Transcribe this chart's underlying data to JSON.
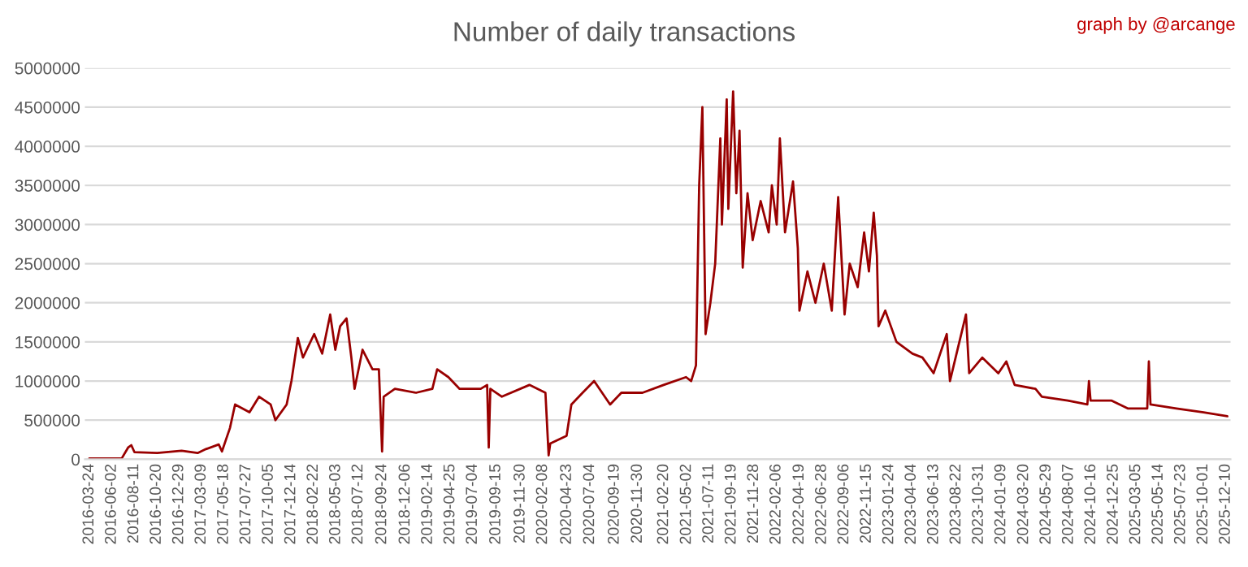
{
  "chart_data": {
    "type": "line",
    "title": "Number of daily transactions",
    "annotations": [
      "graph by @arcange"
    ],
    "x": [
      "2016-03-24",
      "2016-07-03",
      "2016-07-23",
      "2016-08-02",
      "2016-08-12",
      "2016-10-22",
      "2017-01-06",
      "2017-02-25",
      "2017-03-23",
      "2017-05-02",
      "2017-05-12",
      "2017-06-06",
      "2017-06-22",
      "2017-08-06",
      "2017-09-05",
      "2017-10-11",
      "2017-10-26",
      "2017-11-30",
      "2017-12-15",
      "2018-01-04",
      "2018-01-20",
      "2018-02-24",
      "2018-03-21",
      "2018-04-15",
      "2018-05-01",
      "2018-05-16",
      "2018-06-05",
      "2018-06-20",
      "2018-06-30",
      "2018-07-25",
      "2018-08-25",
      "2018-09-14",
      "2018-09-24",
      "2018-09-29",
      "2018-11-03",
      "2019-01-08",
      "2019-02-28",
      "2019-03-15",
      "2019-04-19",
      "2019-05-24",
      "2019-07-29",
      "2019-08-18",
      "2019-08-23",
      "2019-08-28",
      "2019-10-03",
      "2019-12-28",
      "2020-02-16",
      "2020-02-26",
      "2020-03-02",
      "2020-04-22",
      "2020-05-07",
      "2020-06-11",
      "2020-07-17",
      "2020-09-05",
      "2020-10-10",
      "2020-12-15",
      "2021-02-19",
      "2021-04-30",
      "2021-05-16",
      "2021-05-31",
      "2021-06-10",
      "2021-06-20",
      "2021-06-30",
      "2021-07-15",
      "2021-07-30",
      "2021-08-15",
      "2021-08-20",
      "2021-09-04",
      "2021-09-09",
      "2021-09-24",
      "2021-10-04",
      "2021-10-14",
      "2021-10-24",
      "2021-11-08",
      "2021-11-24",
      "2021-12-19",
      "2022-01-13",
      "2022-01-23",
      "2022-02-07",
      "2022-02-17",
      "2022-03-05",
      "2022-03-30",
      "2022-04-14",
      "2022-04-19",
      "2022-05-14",
      "2022-06-08",
      "2022-07-04",
      "2022-07-29",
      "2022-08-18",
      "2022-09-07",
      "2022-09-23",
      "2022-10-18",
      "2022-11-07",
      "2022-11-22",
      "2022-12-07",
      "2022-12-17",
      "2022-12-22",
      "2023-01-12",
      "2023-02-16",
      "2023-04-07",
      "2023-05-08",
      "2023-06-12",
      "2023-07-23",
      "2023-08-02",
      "2023-09-21",
      "2023-10-01",
      "2023-11-11",
      "2023-12-31",
      "2024-01-25",
      "2024-02-20",
      "2024-04-25",
      "2024-05-15",
      "2024-08-04",
      "2024-10-04",
      "2024-10-09",
      "2024-10-14",
      "2024-12-19",
      "2025-02-07",
      "2025-04-09",
      "2025-04-14",
      "2025-04-19",
      "2025-07-09",
      "2025-10-02",
      "2025-12-15"
    ],
    "series": [
      {
        "color": "#990000",
        "values": [
          10000,
          10000,
          150000,
          180000,
          90000,
          80000,
          110000,
          80000,
          130000,
          190000,
          100000,
          400000,
          700000,
          600000,
          800000,
          700000,
          500000,
          700000,
          1000000,
          1550000,
          1300000,
          1600000,
          1350000,
          1850000,
          1400000,
          1700000,
          1800000,
          1300000,
          900000,
          1400000,
          1150000,
          1150000,
          100000,
          800000,
          900000,
          850000,
          900000,
          1150000,
          1050000,
          900000,
          900000,
          950000,
          150000,
          900000,
          800000,
          950000,
          850000,
          50000,
          200000,
          300000,
          700000,
          850000,
          1000000,
          700000,
          850000,
          850000,
          950000,
          1050000,
          1000000,
          1200000,
          3500000,
          4500000,
          1600000,
          2000000,
          2500000,
          4100000,
          3000000,
          4600000,
          3200000,
          4700000,
          3400000,
          4200000,
          2450000,
          3400000,
          2800000,
          3300000,
          2900000,
          3500000,
          3000000,
          4100000,
          2900000,
          3550000,
          2700000,
          1900000,
          2400000,
          2000000,
          2500000,
          1900000,
          3350000,
          1850000,
          2500000,
          2200000,
          2900000,
          2400000,
          3150000,
          2600000,
          1700000,
          1900000,
          1500000,
          1350000,
          1300000,
          1100000,
          1600000,
          1000000,
          1850000,
          1100000,
          1300000,
          1100000,
          1250000,
          950000,
          900000,
          800000,
          750000,
          700000,
          1000000,
          750000,
          750000,
          650000,
          650000,
          1250000,
          700000,
          650000,
          600000,
          550000
        ]
      }
    ],
    "xlim": [
      "2016-03-10",
      "2025-12-25"
    ],
    "xticks": [
      "2016-03-24",
      "2016-06-02",
      "2016-08-11",
      "2016-10-20",
      "2016-12-29",
      "2017-03-09",
      "2017-05-18",
      "2017-07-27",
      "2017-10-05",
      "2017-12-14",
      "2018-02-22",
      "2018-05-03",
      "2018-07-12",
      "2018-09-24",
      "2018-12-06",
      "2019-02-14",
      "2019-04-25",
      "2019-07-04",
      "2019-09-15",
      "2019-11-30",
      "2020-02-08",
      "2020-04-23",
      "2020-07-04",
      "2020-09-19",
      "2020-11-30",
      "2021-02-20",
      "2021-05-02",
      "2021-07-11",
      "2021-09-19",
      "2021-11-28",
      "2022-02-06",
      "2022-04-19",
      "2022-06-28",
      "2022-09-06",
      "2022-11-15",
      "2023-01-24",
      "2023-04-04",
      "2023-06-13",
      "2023-08-22",
      "2023-10-31",
      "2024-01-09",
      "2024-03-20",
      "2024-05-29",
      "2024-08-07",
      "2024-10-16",
      "2024-12-25",
      "2025-03-05",
      "2025-05-14",
      "2025-07-23",
      "2025-10-01",
      "2025-12-10"
    ],
    "ylim": [
      0,
      5000000
    ],
    "yticks": [
      0,
      500000,
      1000000,
      1500000,
      2000000,
      2500000,
      3000000,
      3500000,
      4000000,
      4500000,
      5000000
    ],
    "grid": "y",
    "marker": "none",
    "line_style": "solid",
    "legend": false
  }
}
